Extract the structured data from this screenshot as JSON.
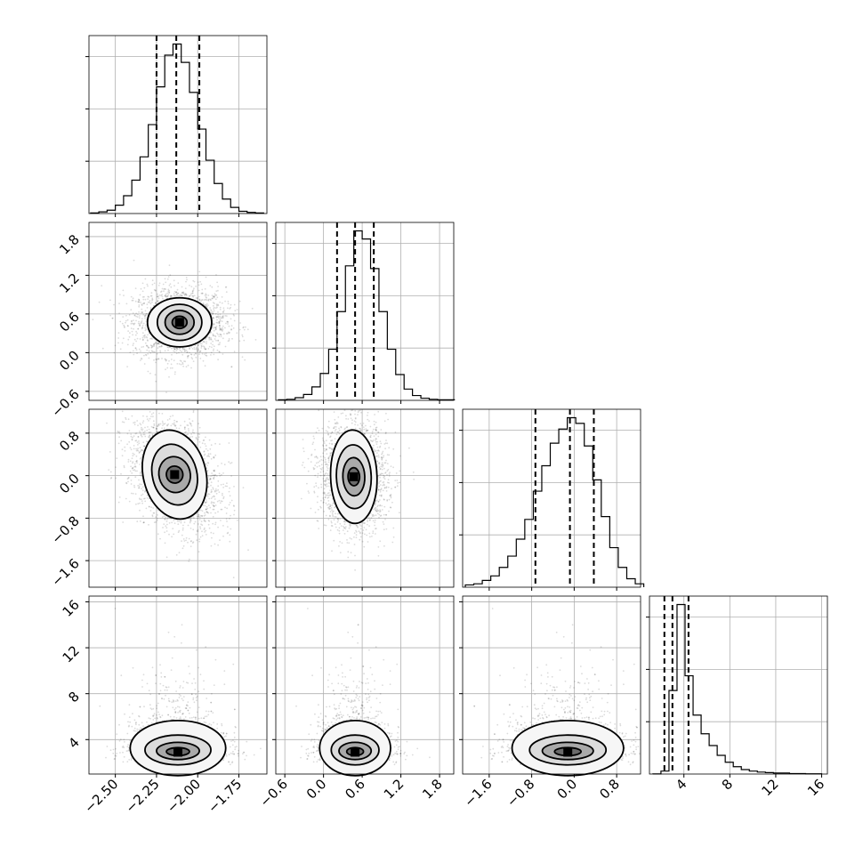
{
  "chart_data": {
    "type": "corner",
    "grid": true,
    "parameters": [
      {
        "id": "p0",
        "range": [
          -2.66,
          -1.58
        ],
        "ticks": [
          -2.5,
          -2.25,
          -2.0,
          -1.75
        ],
        "tick_labels": [
          "−2.50",
          "−2.25",
          "−2.00",
          "−1.75"
        ],
        "quantiles": [
          -2.25,
          -2.13,
          -1.99
        ],
        "mean": -2.12,
        "std": 0.13
      },
      {
        "id": "p1",
        "range": [
          -0.74,
          2.02
        ],
        "ticks": [
          -0.6,
          0.0,
          0.6,
          1.2,
          1.8
        ],
        "tick_labels": [
          "−0.6",
          "0.0",
          "0.6",
          "1.2",
          "1.8"
        ],
        "quantiles": [
          0.21,
          0.49,
          0.78
        ],
        "mean": 0.49,
        "std": 0.27
      },
      {
        "id": "p2",
        "range": [
          -2.1,
          1.25
        ],
        "ticks": [
          -1.6,
          -0.8,
          0.0,
          0.8
        ],
        "tick_labels": [
          "−1.6",
          "−0.8",
          "0.0",
          "0.8"
        ],
        "quantiles": [
          -0.73,
          -0.08,
          0.37
        ],
        "mean": -0.12,
        "std": 0.52
      },
      {
        "id": "p3",
        "range": [
          1.0,
          16.5
        ],
        "ticks": [
          4,
          8,
          12,
          16
        ],
        "tick_labels": [
          "4",
          "8",
          "12",
          "16"
        ],
        "quantiles": [
          2.3,
          3.0,
          4.4
        ],
        "mean": 3.2,
        "std": 1.6
      }
    ],
    "histograms": [
      {
        "param": "p0",
        "bins_x": [
          -2.65,
          -2.6,
          -2.55,
          -2.5,
          -2.45,
          -2.4,
          -2.35,
          -2.3,
          -2.25,
          -2.2,
          -2.15,
          -2.1,
          -2.05,
          -2.0,
          -1.95,
          -1.9,
          -1.85,
          -1.8,
          -1.75,
          -1.7,
          -1.65,
          -1.6
        ],
        "counts": [
          1,
          3,
          6,
          15,
          32,
          60,
          102,
          160,
          228,
          285,
          305,
          272,
          218,
          152,
          96,
          54,
          26,
          11,
          4,
          2,
          1
        ]
      },
      {
        "param": "p1",
        "bins_x": [
          -0.7,
          -0.57,
          -0.44,
          -0.31,
          -0.18,
          -0.05,
          0.08,
          0.21,
          0.34,
          0.47,
          0.6,
          0.73,
          0.86,
          0.99,
          1.12,
          1.25,
          1.38,
          1.51,
          1.64,
          1.77,
          1.9,
          2.03
        ],
        "counts": [
          1,
          2,
          5,
          11,
          25,
          50,
          95,
          165,
          250,
          315,
          300,
          245,
          165,
          95,
          48,
          21,
          9,
          4,
          2,
          1,
          1
        ]
      },
      {
        "param": "p2",
        "bins_x": [
          -2.05,
          -1.89,
          -1.73,
          -1.57,
          -1.41,
          -1.25,
          -1.09,
          -0.93,
          -0.77,
          -0.61,
          -0.45,
          -0.29,
          -0.13,
          0.03,
          0.19,
          0.35,
          0.51,
          0.67,
          0.83,
          0.99,
          1.15,
          1.31
        ],
        "counts": [
          4,
          6,
          12,
          20,
          35,
          55,
          85,
          120,
          170,
          215,
          255,
          280,
          300,
          290,
          250,
          190,
          125,
          70,
          35,
          15,
          6
        ]
      },
      {
        "param": "p3",
        "bins_x": [
          1.3,
          2.0,
          2.7,
          3.4,
          4.1,
          4.8,
          5.5,
          6.2,
          6.9,
          7.6,
          8.3,
          9.0,
          9.7,
          10.4,
          11.1,
          11.8,
          12.5,
          13.2,
          13.9,
          14.6,
          15.3,
          16.0
        ],
        "counts": [
          0.2,
          6,
          170,
          345,
          200,
          120,
          82,
          58,
          38,
          24,
          15,
          9,
          6,
          4,
          3,
          2,
          2,
          1,
          1,
          0.5,
          0.5
        ]
      }
    ],
    "pairs": [
      {
        "x": "p0",
        "y": "p1",
        "center": [
          -2.11,
          0.47
        ],
        "sigma": [
          0.14,
          0.27
        ],
        "corr": 0.0,
        "contours": [
          [
            0.045,
            0.095
          ],
          [
            0.088,
            0.185
          ],
          [
            0.135,
            0.28
          ],
          [
            0.195,
            0.38
          ]
        ]
      },
      {
        "x": "p0",
        "y": "p2",
        "center": [
          -2.14,
          0.02
        ],
        "sigma": [
          0.14,
          0.52
        ],
        "corr": -0.35,
        "contours": [
          [
            0.05,
            0.16
          ],
          [
            0.095,
            0.34
          ],
          [
            0.135,
            0.58
          ],
          [
            0.19,
            0.85
          ]
        ]
      },
      {
        "x": "p1",
        "y": "p2",
        "center": [
          0.47,
          -0.02
        ],
        "sigma": [
          0.26,
          0.52
        ],
        "corr": -0.05,
        "contours": [
          [
            0.09,
            0.17
          ],
          [
            0.17,
            0.36
          ],
          [
            0.27,
            0.6
          ],
          [
            0.36,
            0.88
          ]
        ]
      },
      {
        "x": "p0",
        "y": "p3",
        "center": [
          -2.12,
          2.9
        ],
        "sigma": [
          0.14,
          1.6
        ],
        "corr": 0.0,
        "contours": [
          [
            0.07,
            0.35
          ],
          [
            0.13,
            0.75
          ],
          [
            0.2,
            1.3
          ],
          [
            0.29,
            2.4
          ]
        ]
      },
      {
        "x": "p1",
        "y": "p3",
        "center": [
          0.49,
          2.9
        ],
        "sigma": [
          0.27,
          1.6
        ],
        "corr": 0.0,
        "contours": [
          [
            0.13,
            0.35
          ],
          [
            0.25,
            0.75
          ],
          [
            0.37,
            1.3
          ],
          [
            0.55,
            2.4
          ]
        ]
      },
      {
        "x": "p2",
        "y": "p3",
        "center": [
          -0.12,
          2.9
        ],
        "sigma": [
          0.52,
          1.6
        ],
        "corr": 0.0,
        "contours": [
          [
            0.25,
            0.35
          ],
          [
            0.48,
            0.75
          ],
          [
            0.72,
            1.3
          ],
          [
            1.05,
            2.4
          ]
        ]
      }
    ]
  }
}
